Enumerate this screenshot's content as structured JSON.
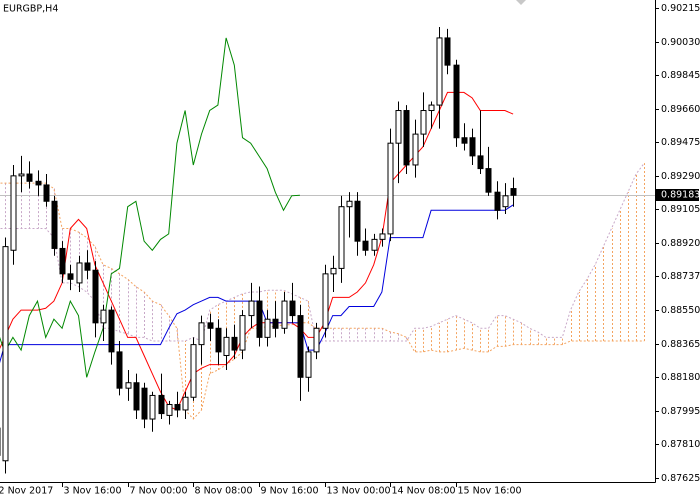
{
  "chart_data": {
    "type": "candlestick",
    "title": "EURGBP,H4",
    "categories": [
      "2 Nov 2017",
      null,
      null,
      null,
      null,
      null,
      null,
      null,
      "3 Nov 16:00",
      null,
      null,
      null,
      null,
      null,
      null,
      null,
      "7 Nov 00:00",
      null,
      null,
      null,
      null,
      null,
      null,
      null,
      "8 Nov 08:00",
      null,
      null,
      null,
      null,
      null,
      null,
      null,
      "9 Nov 16:00",
      null,
      null,
      null,
      null,
      null,
      null,
      null,
      "13 Nov 00:00",
      null,
      null,
      null,
      null,
      null,
      null,
      null,
      "14 Nov 08:00",
      null,
      null,
      null,
      null,
      null,
      null,
      null,
      "15 Nov 16:00",
      null,
      null,
      null,
      null,
      null,
      null,
      null,
      null,
      null,
      null,
      null,
      null,
      null,
      null,
      null,
      null,
      null,
      null,
      null,
      null,
      null,
      null,
      null
    ],
    "open": [
      0.879,
      0.8772,
      0.8888,
      0.8929,
      0.893,
      0.8926,
      0.8924,
      0.8915,
      0.8889,
      0.8875,
      0.887,
      0.8881,
      0.8877,
      0.8848,
      0.8855,
      0.8832,
      0.8812,
      0.8815,
      0.8812,
      0.8795,
      0.8808,
      0.8797,
      0.8803,
      0.88,
      0.8807,
      0.8836,
      0.8848,
      0.8845,
      0.883,
      0.884,
      0.8833,
      0.8852,
      0.886,
      0.884,
      0.885,
      0.8845,
      0.886,
      0.8852,
      0.8818,
      0.8832,
      0.8845,
      0.8875,
      0.8878,
      0.8912,
      0.8915,
      0.8893,
      0.8888,
      0.8894,
      0.8897,
      0.8947,
      0.8965,
      0.8935,
      0.8952,
      0.8965,
      0.8968,
      0.9005,
      0.899,
      0.895,
      0.895,
      0.894,
      0.8933,
      0.892,
      0.8912,
      0.8922,
      null,
      null,
      null,
      null,
      null,
      null,
      null,
      null,
      null,
      null,
      null,
      null,
      null,
      null,
      null,
      null
    ],
    "high": [
      0.882,
      0.8895,
      0.8935,
      0.894,
      0.8937,
      0.8932,
      0.893,
      0.8918,
      0.8893,
      0.888,
      0.8885,
      0.8888,
      0.8882,
      0.8858,
      0.8857,
      0.8838,
      0.8822,
      0.882,
      0.8815,
      0.881,
      0.882,
      0.8805,
      0.881,
      0.881,
      0.884,
      0.8852,
      0.8853,
      0.885,
      0.8845,
      0.8847,
      0.8855,
      0.887,
      0.8868,
      0.8855,
      0.886,
      0.8865,
      0.887,
      0.8858,
      0.8835,
      0.8848,
      0.888,
      0.8885,
      0.8918,
      0.892,
      0.892,
      0.89,
      0.8897,
      0.89,
      0.8955,
      0.897,
      0.8968,
      0.896,
      0.8975,
      0.897,
      0.9011,
      0.901,
      0.8993,
      0.8958,
      0.8955,
      0.8965,
      0.8945,
      0.8926,
      0.8925,
      0.8928,
      null,
      null,
      null,
      null,
      null,
      null,
      null,
      null,
      null,
      null,
      null,
      null,
      null,
      null,
      null,
      null
    ],
    "low": [
      0.877,
      0.8765,
      0.888,
      0.892,
      0.8922,
      0.8918,
      0.8912,
      0.8885,
      0.887,
      0.8866,
      0.8865,
      0.8872,
      0.884,
      0.8838,
      0.8825,
      0.8808,
      0.8805,
      0.8795,
      0.879,
      0.8788,
      0.8795,
      0.8792,
      0.8796,
      0.8795,
      0.8805,
      0.8825,
      0.8838,
      0.8825,
      0.8822,
      0.8828,
      0.8828,
      0.8845,
      0.8835,
      0.8835,
      0.884,
      0.8842,
      0.8848,
      0.8805,
      0.881,
      0.8828,
      0.884,
      0.8865,
      0.887,
      0.8895,
      0.8885,
      0.8885,
      0.8885,
      0.889,
      0.8893,
      0.8925,
      0.893,
      0.8928,
      0.8945,
      0.8955,
      0.8955,
      0.8985,
      0.8945,
      0.8943,
      0.8935,
      0.893,
      0.8918,
      0.8905,
      0.8908,
      0.8912,
      null,
      null,
      null,
      null,
      null,
      null,
      null,
      null,
      null,
      null,
      null,
      null,
      null,
      null,
      null,
      null
    ],
    "close": [
      0.8775,
      0.889,
      0.8929,
      0.893,
      0.8926,
      0.8924,
      0.8915,
      0.8889,
      0.8875,
      0.8872,
      0.8881,
      0.8877,
      0.8848,
      0.8855,
      0.8832,
      0.8812,
      0.8815,
      0.88,
      0.8795,
      0.8808,
      0.8798,
      0.8803,
      0.88,
      0.8807,
      0.8836,
      0.8848,
      0.8845,
      0.8832,
      0.884,
      0.8833,
      0.8852,
      0.886,
      0.884,
      0.885,
      0.8845,
      0.886,
      0.8852,
      0.8818,
      0.8832,
      0.8845,
      0.8875,
      0.8878,
      0.8912,
      0.8915,
      0.8893,
      0.8888,
      0.8894,
      0.8897,
      0.8947,
      0.8965,
      0.8935,
      0.8952,
      0.8965,
      0.8968,
      0.9005,
      0.899,
      0.895,
      0.8947,
      0.894,
      0.8933,
      0.892,
      0.891,
      0.8918,
      0.89183,
      null,
      null,
      null,
      null,
      null,
      null,
      null,
      null,
      null,
      null,
      null,
      null,
      null,
      null,
      null,
      null
    ],
    "up_color": "#ffffff",
    "down_color": "#000000",
    "lines": [
      {
        "color": "#ff0000",
        "values": [
          0.883,
          0.884,
          0.885,
          0.8855,
          0.8855,
          0.8855,
          0.8856,
          0.886,
          0.887,
          0.89,
          0.8905,
          0.89,
          0.888,
          0.887,
          0.886,
          0.885,
          0.884,
          0.884,
          0.883,
          0.882,
          0.881,
          0.8802,
          0.88,
          0.881,
          0.882,
          0.8823,
          0.8825,
          0.8825,
          0.8825,
          0.883,
          0.884,
          0.8845,
          0.8848,
          0.8848,
          0.8848,
          0.8848,
          0.8848,
          0.8845,
          0.884,
          0.884,
          0.8848,
          0.8862,
          0.8862,
          0.8862,
          0.8865,
          0.887,
          0.888,
          0.8895,
          0.8925,
          0.893,
          0.8935,
          0.894,
          0.8945,
          0.8955,
          0.8965,
          0.8975,
          0.8975,
          0.8975,
          0.8972,
          0.8965,
          0.8965,
          0.8965,
          0.8965,
          0.8963,
          null,
          null,
          null,
          null,
          null,
          null,
          null,
          null,
          null,
          null,
          null,
          null,
          null,
          null,
          null,
          null
        ]
      },
      {
        "color": "#0000dd",
        "values": [
          0.882,
          0.8836,
          0.8836,
          0.8836,
          0.8836,
          0.8836,
          0.8836,
          0.8836,
          0.8836,
          0.8836,
          0.8836,
          0.8836,
          0.8836,
          0.8836,
          0.8836,
          0.8836,
          0.8836,
          0.8836,
          0.8836,
          0.8836,
          0.8836,
          0.8845,
          0.8853,
          0.8855,
          0.8858,
          0.886,
          0.8862,
          0.8862,
          0.886,
          0.886,
          0.886,
          0.886,
          0.886,
          0.8848,
          0.8848,
          0.8848,
          0.8848,
          0.8848,
          0.8833,
          0.8833,
          0.8842,
          0.8852,
          0.8852,
          0.8857,
          0.8857,
          0.8857,
          0.8857,
          0.8865,
          0.8895,
          0.8895,
          0.8895,
          0.8895,
          0.8895,
          0.891,
          0.891,
          0.891,
          0.891,
          0.891,
          0.891,
          0.891,
          0.891,
          0.891,
          0.891,
          0.8913,
          null,
          null,
          null,
          null,
          null,
          null,
          null,
          null,
          null,
          null,
          null,
          null,
          null,
          null,
          null,
          null
        ]
      },
      {
        "color": "#008800",
        "values": [
          0.8845,
          0.8832,
          0.884,
          0.8833,
          0.8852,
          0.886,
          0.884,
          0.885,
          0.8845,
          0.886,
          0.8852,
          0.8818,
          0.8832,
          0.8845,
          0.8875,
          0.8878,
          0.8912,
          0.8915,
          0.8893,
          0.8888,
          0.8894,
          0.8897,
          0.8947,
          0.8965,
          0.8935,
          0.8952,
          0.8965,
          0.8968,
          0.9005,
          0.899,
          0.895,
          0.8947,
          0.894,
          0.8933,
          0.892,
          0.891,
          0.8918,
          0.89183,
          null,
          null,
          null,
          null,
          null,
          null,
          null,
          null,
          null,
          null,
          null,
          null,
          null,
          null,
          null,
          null,
          null,
          null,
          null,
          null,
          null,
          null,
          null,
          null,
          null,
          null,
          null,
          null,
          null,
          null,
          null,
          null,
          null,
          null,
          null,
          null,
          null,
          null,
          null,
          null,
          null,
          null
        ]
      }
    ],
    "cloud": {
      "bull_color": "#c8a8c8",
      "bear_color": "#f4a460",
      "span_a": [
        0.8925,
        0.8925,
        0.8925,
        0.8925,
        0.8925,
        0.8925,
        0.8925,
        0.8922,
        0.89,
        0.89,
        0.8898,
        0.8895,
        0.889,
        0.888,
        0.8878,
        0.8875,
        0.8872,
        0.8868,
        0.8865,
        0.886,
        0.8858,
        0.8852,
        0.8845,
        0.88,
        0.8795,
        0.88,
        0.882,
        0.8822,
        0.8825,
        0.8828,
        0.8832,
        0.8845,
        0.8845,
        0.8846,
        0.8846,
        0.8847,
        0.8847,
        0.8848,
        0.8848,
        0.8845,
        0.8845,
        0.8845,
        0.8845,
        0.8845,
        0.8845,
        0.8845,
        0.8845,
        0.8845,
        0.8843,
        0.8842,
        0.884,
        0.8832,
        0.8832,
        0.8833,
        0.8832,
        0.8832,
        0.8833,
        0.8834,
        0.8833,
        0.8832,
        0.8832,
        0.8835,
        0.8835,
        0.8836,
        0.8836,
        0.8836,
        0.8836,
        0.8836,
        0.8836,
        0.8836,
        0.8838,
        0.8838,
        0.8838,
        0.8838,
        0.8838,
        0.8838,
        0.8838,
        0.8838,
        0.8838,
        0.8838
      ],
      "span_b": [
        0.89,
        0.89,
        0.89,
        0.89,
        0.89,
        0.89,
        0.89,
        0.8895,
        0.887,
        0.887,
        0.8868,
        0.8865,
        0.886,
        0.8845,
        0.8845,
        0.8843,
        0.8842,
        0.884,
        0.884,
        0.8838,
        0.8838,
        0.8838,
        0.8838,
        0.8838,
        0.884,
        0.8838,
        0.8855,
        0.8858,
        0.886,
        0.8862,
        0.8864,
        0.8865,
        0.8865,
        0.8866,
        0.8866,
        0.8866,
        0.8864,
        0.8862,
        0.886,
        0.8838,
        0.8838,
        0.8838,
        0.8838,
        0.8838,
        0.8838,
        0.8838,
        0.8838,
        0.8838,
        0.8838,
        0.8838,
        0.8838,
        0.8845,
        0.8845,
        0.8846,
        0.8848,
        0.885,
        0.8852,
        0.885,
        0.8848,
        0.8845,
        0.8845,
        0.8852,
        0.8852,
        0.885,
        0.8848,
        0.8845,
        0.8843,
        0.884,
        0.884,
        0.884,
        0.8855,
        0.8865,
        0.8872,
        0.888,
        0.889,
        0.89,
        0.891,
        0.892,
        0.893,
        0.8936
      ]
    },
    "current_price": 0.89183,
    "ylim": [
      0.87603,
      0.90259
    ],
    "yticks": [
      0.90215,
      {
        "value": 0.9003,
        "label": "0.90030"
      },
      0.89845,
      {
        "value": 0.8966,
        "label": "0.89660"
      },
      0.89475,
      {
        "value": 0.8929,
        "label": "0.89290"
      },
      0.89105,
      {
        "value": 0.8892,
        "label": "0.88920"
      },
      0.88737,
      {
        "value": 0.8855,
        "label": "0.88550"
      },
      0.88365,
      {
        "value": 0.8818,
        "label": "0.88180"
      },
      0.87995,
      {
        "value": 0.8781,
        "label": "0.87810"
      },
      0.87625
    ]
  }
}
